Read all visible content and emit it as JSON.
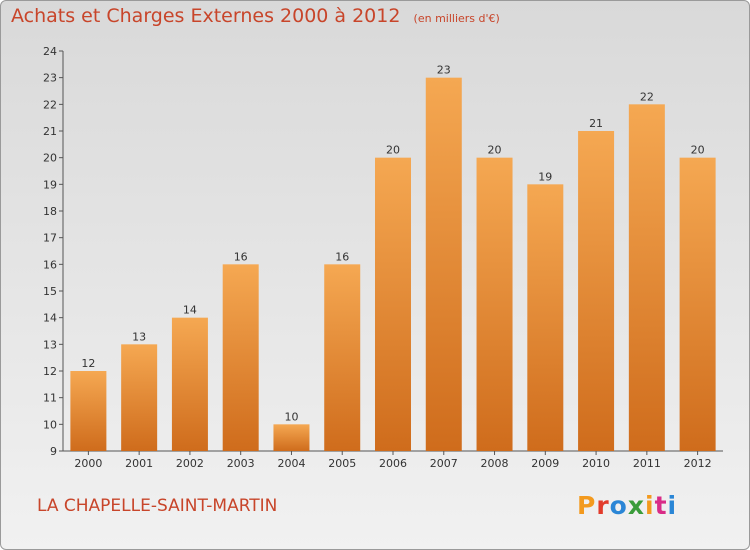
{
  "title": {
    "main": "Achats et Charges Externes 2000 à 2012",
    "unit": "(en milliers d'€)"
  },
  "location": "LA CHAPELLE-SAINT-MARTIN",
  "logo": {
    "text": "Proxiti",
    "colors": [
      "#f39a1e",
      "#e23b2b",
      "#2a86d6",
      "#3a9c3a",
      "#f39a1e",
      "#d92c87",
      "#2a86d6"
    ]
  },
  "colors": {
    "bar_top": "#f5a852",
    "bar_bottom": "#cf6c1c",
    "text": "#333333",
    "accent": "#c8452a"
  },
  "chart_data": {
    "type": "bar",
    "title": "Achats et Charges Externes 2000 à 2012",
    "categories": [
      "2000",
      "2001",
      "2002",
      "2003",
      "2004",
      "2005",
      "2006",
      "2007",
      "2008",
      "2009",
      "2010",
      "2011",
      "2012"
    ],
    "values": [
      12,
      13,
      14,
      16,
      10,
      16,
      20,
      23,
      20,
      19,
      21,
      22,
      20
    ],
    "yticks": [
      9,
      10,
      11,
      12,
      13,
      14,
      15,
      16,
      17,
      18,
      19,
      20,
      21,
      22,
      23,
      24
    ],
    "ylim": [
      9,
      24
    ],
    "grid": false,
    "legend": "none"
  }
}
